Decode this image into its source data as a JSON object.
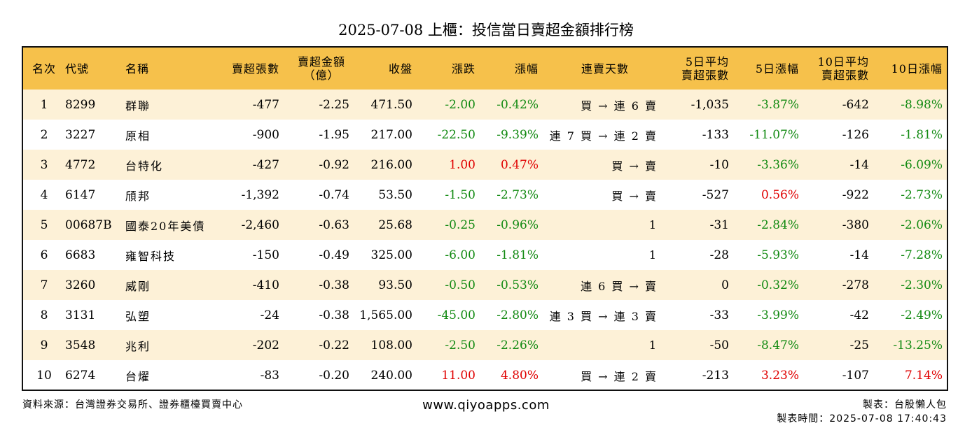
{
  "title": "2025-07-08 上櫃：投信當日賣超金額排行榜",
  "headers": {
    "rank": "名次",
    "code": "代號",
    "name": "名稱",
    "sell_shares": "賣超張數",
    "sell_amount_1": "賣超金額",
    "sell_amount_2": "（億）",
    "close": "收盤",
    "change": "漲跌",
    "change_pct": "漲幅",
    "streak": "連賣天數",
    "avg5_1": "5日平均",
    "avg5_2": "賣超張數",
    "chg5": "5日漲幅",
    "avg10_1": "10日平均",
    "avg10_2": "賣超張數",
    "chg10": "10日漲幅"
  },
  "rows": [
    {
      "rank": "1",
      "code": "8299",
      "name": "群聯",
      "sell_shares": "-477",
      "sell_amount": "-2.25",
      "close": "471.50",
      "change": "-2.00",
      "change_pct": "-0.42%",
      "streak": "買 → 連 6 賣",
      "avg5": "-1,035",
      "chg5": "-3.87%",
      "avg10": "-642",
      "chg10": "-8.98%"
    },
    {
      "rank": "2",
      "code": "3227",
      "name": "原相",
      "sell_shares": "-900",
      "sell_amount": "-1.95",
      "close": "217.00",
      "change": "-22.50",
      "change_pct": "-9.39%",
      "streak": "連 7 買 → 連 2 賣",
      "avg5": "-133",
      "chg5": "-11.07%",
      "avg10": "-126",
      "chg10": "-1.81%"
    },
    {
      "rank": "3",
      "code": "4772",
      "name": "台特化",
      "sell_shares": "-427",
      "sell_amount": "-0.92",
      "close": "216.00",
      "change": "1.00",
      "change_pct": "0.47%",
      "streak": "買 → 賣",
      "avg5": "-10",
      "chg5": "-3.36%",
      "avg10": "-14",
      "chg10": "-6.09%"
    },
    {
      "rank": "4",
      "code": "6147",
      "name": "頎邦",
      "sell_shares": "-1,392",
      "sell_amount": "-0.74",
      "close": "53.50",
      "change": "-1.50",
      "change_pct": "-2.73%",
      "streak": "買 → 賣",
      "avg5": "-527",
      "chg5": "0.56%",
      "avg10": "-922",
      "chg10": "-2.73%"
    },
    {
      "rank": "5",
      "code": "00687B",
      "name": "國泰20年美債",
      "sell_shares": "-2,460",
      "sell_amount": "-0.63",
      "close": "25.68",
      "change": "-0.25",
      "change_pct": "-0.96%",
      "streak": "1",
      "avg5": "-31",
      "chg5": "-2.84%",
      "avg10": "-380",
      "chg10": "-2.06%"
    },
    {
      "rank": "6",
      "code": "6683",
      "name": "雍智科技",
      "sell_shares": "-150",
      "sell_amount": "-0.49",
      "close": "325.00",
      "change": "-6.00",
      "change_pct": "-1.81%",
      "streak": "1",
      "avg5": "-28",
      "chg5": "-5.93%",
      "avg10": "-14",
      "chg10": "-7.28%"
    },
    {
      "rank": "7",
      "code": "3260",
      "name": "威剛",
      "sell_shares": "-410",
      "sell_amount": "-0.38",
      "close": "93.50",
      "change": "-0.50",
      "change_pct": "-0.53%",
      "streak": "連 6 買 → 賣",
      "avg5": "0",
      "chg5": "-0.32%",
      "avg10": "-278",
      "chg10": "-2.30%"
    },
    {
      "rank": "8",
      "code": "3131",
      "name": "弘塑",
      "sell_shares": "-24",
      "sell_amount": "-0.38",
      "close": "1,565.00",
      "change": "-45.00",
      "change_pct": "-2.80%",
      "streak": "連 3 買 → 連 3 賣",
      "avg5": "-33",
      "chg5": "-3.99%",
      "avg10": "-42",
      "chg10": "-2.49%"
    },
    {
      "rank": "9",
      "code": "3548",
      "name": "兆利",
      "sell_shares": "-202",
      "sell_amount": "-0.22",
      "close": "108.00",
      "change": "-2.50",
      "change_pct": "-2.26%",
      "streak": "1",
      "avg5": "-50",
      "chg5": "-8.47%",
      "avg10": "-25",
      "chg10": "-13.25%"
    },
    {
      "rank": "10",
      "code": "6274",
      "name": "台燿",
      "sell_shares": "-83",
      "sell_amount": "-0.20",
      "close": "240.00",
      "change": "11.00",
      "change_pct": "4.80%",
      "streak": "買 → 連 2 賣",
      "avg5": "-213",
      "chg5": "3.23%",
      "avg10": "-107",
      "chg10": "7.14%"
    }
  ],
  "colors": {
    "header_bg": "#f6c14b",
    "odd_row_bg": "#fdf1d7",
    "positive": "#e00000",
    "negative": "#128a12"
  },
  "footer": {
    "source": "資料來源：台灣證券交易所、證券櫃檯買賣中心",
    "site": "www.qiyoapps.com",
    "maker": "製表：台股懶人包",
    "time": "製表時間：2025-07-08 17:40:43"
  }
}
